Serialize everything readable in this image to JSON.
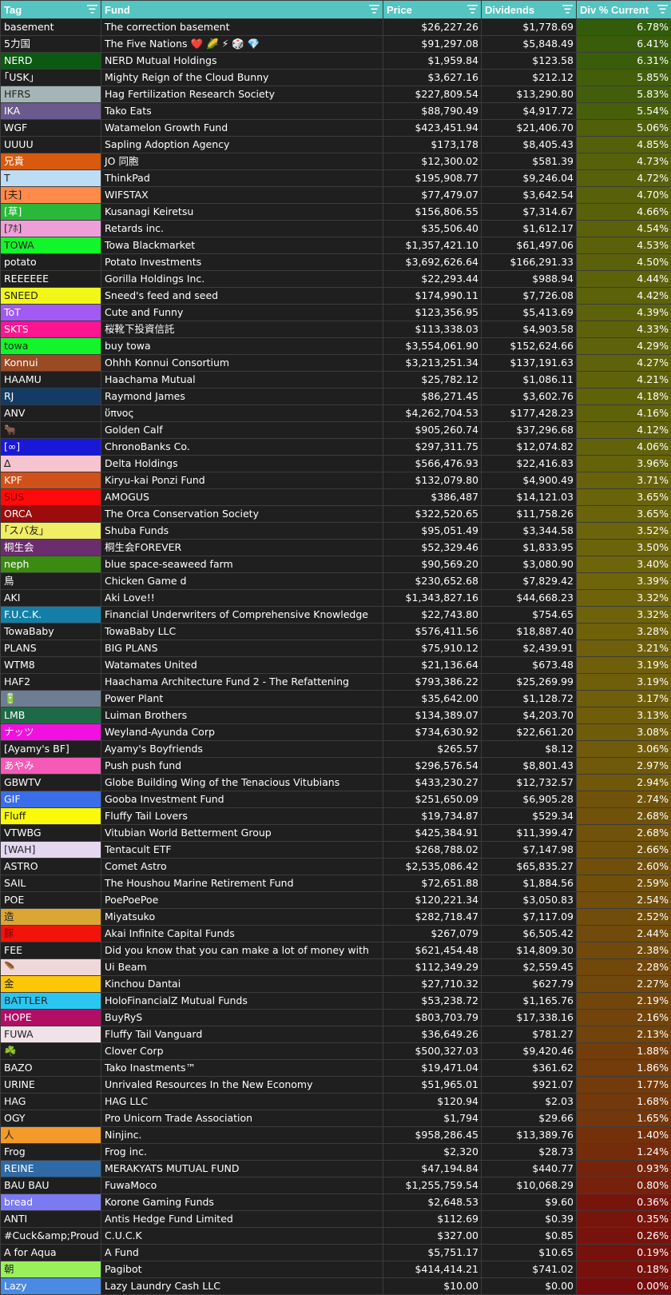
{
  "header": {
    "columns": [
      {
        "key": "tag",
        "label": "Tag"
      },
      {
        "key": "fund",
        "label": "Fund"
      },
      {
        "key": "price",
        "label": "Price"
      },
      {
        "key": "dividends",
        "label": "Dividends"
      },
      {
        "key": "pct",
        "label": "Div % Current"
      }
    ],
    "filter_icon": "filter-list-icon",
    "header_color": "#54c5c1"
  },
  "rows": [
    {
      "tag": "basement",
      "tag_bg": "#1f1f1f",
      "fund": "The correction basement",
      "price": "$26,227.26",
      "dividends": "$1,778.69",
      "pct": "6.78%",
      "pct_value": 6.78
    },
    {
      "tag": "5力国",
      "tag_bg": "#1f1f1f",
      "fund": "The Five Nations ❤️ 🌽 ⚡ 🎲 💎",
      "price": "$91,297.08",
      "dividends": "$5,848.49",
      "pct": "6.41%",
      "pct_value": 6.41
    },
    {
      "tag": "NERD",
      "tag_bg": "#0b5a12",
      "fund": "NERD Mutual Holdings",
      "price": "$1,959.84",
      "dividends": "$123.58",
      "pct": "6.31%",
      "pct_value": 6.31
    },
    {
      "tag": "｢USK｣",
      "tag_bg": "#1f1f1f",
      "fund": "Mighty Reign of the Cloud Bunny",
      "price": "$3,627.16",
      "dividends": "$212.12",
      "pct": "5.85%",
      "pct_value": 5.85
    },
    {
      "tag": "HFRS",
      "tag_bg": "#a4b5b7",
      "fund": "Hag Fertilization Research Society",
      "price": "$227,809.54",
      "dividends": "$13,290.80",
      "pct": "5.83%",
      "pct_value": 5.83
    },
    {
      "tag": "IKA",
      "tag_bg": "#6a5a8e",
      "fund": "Tako Eats",
      "price": "$88,790.49",
      "dividends": "$4,917.72",
      "pct": "5.54%",
      "pct_value": 5.54
    },
    {
      "tag": "WGF",
      "tag_bg": "#1f1f1f",
      "fund": "Watamelon Growth Fund",
      "price": "$423,451.94",
      "dividends": "$21,406.70",
      "pct": "5.06%",
      "pct_value": 5.06
    },
    {
      "tag": "UUUU",
      "tag_bg": "#1f1f1f",
      "fund": "Sapling Adoption Agency",
      "price": "$173,178",
      "dividends": "$8,405.43",
      "pct": "4.85%",
      "pct_value": 4.85
    },
    {
      "tag": "兄貴",
      "tag_bg": "#d85a0e",
      "fund": "JO 同胞",
      "price": "$12,300.02",
      "dividends": "$581.39",
      "pct": "4.73%",
      "pct_value": 4.73
    },
    {
      "tag": "T",
      "tag_bg": "#bedcf4",
      "fund": "ThinkPad",
      "price": "$195,908.77",
      "dividends": "$9,246.04",
      "pct": "4.72%",
      "pct_value": 4.72
    },
    {
      "tag": "[夫]",
      "tag_bg": "#ff8a4a",
      "fund": "WIFSTAX",
      "price": "$77,479.07",
      "dividends": "$3,642.54",
      "pct": "4.70%",
      "pct_value": 4.7
    },
    {
      "tag": "[草]",
      "tag_bg": "#2ab83a",
      "fund": "Kusanagi Keiretsu",
      "price": "$156,806.55",
      "dividends": "$7,314.67",
      "pct": "4.66%",
      "pct_value": 4.66
    },
    {
      "tag": "[ｱﾎ]",
      "tag_bg": "#ef9fd8",
      "fund": "Retards inc.",
      "price": "$35,506.40",
      "dividends": "$1,612.17",
      "pct": "4.54%",
      "pct_value": 4.54
    },
    {
      "tag": "TOWA",
      "tag_bg": "#12f52a",
      "fund": "Towa Blackmarket",
      "price": "$1,357,421.10",
      "dividends": "$61,497.06",
      "pct": "4.53%",
      "pct_value": 4.53
    },
    {
      "tag": "potato",
      "tag_bg": "#1f1f1f",
      "fund": "Potato Investments",
      "price": "$3,692,626.64",
      "dividends": "$166,291.33",
      "pct": "4.50%",
      "pct_value": 4.5
    },
    {
      "tag": "REEEEEE",
      "tag_bg": "#1f1f1f",
      "fund": "Gorilla Holdings Inc.",
      "price": "$22,293.44",
      "dividends": "$988.94",
      "pct": "4.44%",
      "pct_value": 4.44
    },
    {
      "tag": "SNEED",
      "tag_bg": "#f2f71a",
      "fund": "Sneed's feed and seed",
      "price": "$174,990.11",
      "dividends": "$7,726.08",
      "pct": "4.42%",
      "pct_value": 4.42
    },
    {
      "tag": "ToT",
      "tag_bg": "#a35af2",
      "fund": "Cute and Funny",
      "price": "$123,356.95",
      "dividends": "$5,413.69",
      "pct": "4.39%",
      "pct_value": 4.39
    },
    {
      "tag": "SKTS",
      "tag_bg": "#ff158f",
      "fund": "桜靴下投資信託",
      "price": "$113,338.03",
      "dividends": "$4,903.58",
      "pct": "4.33%",
      "pct_value": 4.33
    },
    {
      "tag": "towa",
      "tag_bg": "#12f52a",
      "fund": "buy towa",
      "price": "$3,554,061.90",
      "dividends": "$152,624.66",
      "pct": "4.29%",
      "pct_value": 4.29
    },
    {
      "tag": "Konnui",
      "tag_bg": "#9a4b24",
      "fund": "Ohhh Konnui Consortium",
      "price": "$3,213,251.34",
      "dividends": "$137,191.63",
      "pct": "4.27%",
      "pct_value": 4.27
    },
    {
      "tag": "HAAMU",
      "tag_bg": "#1f1f1f",
      "fund": "Haachama Mutual",
      "price": "$25,782.12",
      "dividends": "$1,086.11",
      "pct": "4.21%",
      "pct_value": 4.21
    },
    {
      "tag": "RJ",
      "tag_bg": "#123c66",
      "fund": "Raymond James",
      "price": "$86,271.45",
      "dividends": "$3,602.76",
      "pct": "4.18%",
      "pct_value": 4.18
    },
    {
      "tag": "ANV",
      "tag_bg": "#1f1f1f",
      "fund": "ὕπνος",
      "price": "$4,262,704.53",
      "dividends": "$177,428.23",
      "pct": "4.16%",
      "pct_value": 4.16
    },
    {
      "tag": "🐂",
      "tag_bg": "#1f1f1f",
      "fund": "Golden Calf",
      "price": "$905,260.74",
      "dividends": "$37,296.68",
      "pct": "4.12%",
      "pct_value": 4.12
    },
    {
      "tag": "[∞]",
      "tag_bg": "#1a18d8",
      "fund": "ChronoBanks Co.",
      "price": "$297,311.75",
      "dividends": "$12,074.82",
      "pct": "4.06%",
      "pct_value": 4.06
    },
    {
      "tag": "∆",
      "tag_bg": "#f5c4cf",
      "fund": "Delta Holdings",
      "price": "$566,476.93",
      "dividends": "$22,416.83",
      "pct": "3.96%",
      "pct_value": 3.96
    },
    {
      "tag": "KPF",
      "tag_bg": "#d2501a",
      "fund": "Kiryu-kai Ponzi Fund",
      "price": "$132,079.80",
      "dividends": "$4,900.49",
      "pct": "3.71%",
      "pct_value": 3.71
    },
    {
      "tag": "SUS",
      "tag_bg": "#ff0a0a",
      "fund": "AMOGUS",
      "price": "$386,487",
      "dividends": "$14,121.03",
      "pct": "3.65%",
      "pct_value": 3.65
    },
    {
      "tag": "ORCA",
      "tag_bg": "#9c0c0c",
      "fund": "The Orca Conservation Society",
      "price": "$322,520.65",
      "dividends": "$11,758.26",
      "pct": "3.65%",
      "pct_value": 3.65
    },
    {
      "tag": "｢スバ友｣",
      "tag_bg": "#f0ee64",
      "fund": "Shuba Funds",
      "price": "$95,051.49",
      "dividends": "$3,344.58",
      "pct": "3.52%",
      "pct_value": 3.52
    },
    {
      "tag": "桐生会",
      "tag_bg": "#6b2d6e",
      "fund": "桐生会FOREVER",
      "price": "$52,329.46",
      "dividends": "$1,833.95",
      "pct": "3.50%",
      "pct_value": 3.5
    },
    {
      "tag": "neph",
      "tag_bg": "#3b8a12",
      "fund": "blue space-seaweed farm",
      "price": "$90,569.20",
      "dividends": "$3,080.90",
      "pct": "3.40%",
      "pct_value": 3.4
    },
    {
      "tag": "鳥",
      "tag_bg": "#1f1f1f",
      "fund": "Chicken Game d",
      "price": "$230,652.68",
      "dividends": "$7,829.42",
      "pct": "3.39%",
      "pct_value": 3.39
    },
    {
      "tag": "AKI",
      "tag_bg": "#1f1f1f",
      "fund": "Aki Love!!",
      "price": "$1,343,827.16",
      "dividends": "$44,668.23",
      "pct": "3.32%",
      "pct_value": 3.32
    },
    {
      "tag": "F.U.C.K.",
      "tag_bg": "#137fa8",
      "fund": "Financial Underwriters of Comprehensive Knowledge",
      "price": "$22,743.80",
      "dividends": "$754.65",
      "pct": "3.32%",
      "pct_value": 3.32
    },
    {
      "tag": "TowaBaby",
      "tag_bg": "#1f1f1f",
      "fund": "TowaBaby LLC",
      "price": "$576,411.56",
      "dividends": "$18,887.40",
      "pct": "3.28%",
      "pct_value": 3.28
    },
    {
      "tag": "PLANS",
      "tag_bg": "#1f1f1f",
      "fund": "BIG PLANS",
      "price": "$75,910.12",
      "dividends": "$2,439.91",
      "pct": "3.21%",
      "pct_value": 3.21
    },
    {
      "tag": "WTM8",
      "tag_bg": "#1f1f1f",
      "fund": "Watamates United",
      "price": "$21,136.64",
      "dividends": "$673.48",
      "pct": "3.19%",
      "pct_value": 3.19
    },
    {
      "tag": "HAF2",
      "tag_bg": "#1f1f1f",
      "fund": "Haachama Architecture Fund 2 - The Refattening",
      "price": "$793,386.22",
      "dividends": "$25,269.99",
      "pct": "3.19%",
      "pct_value": 3.19
    },
    {
      "tag": "🔋",
      "tag_bg": "#6e7e92",
      "fund": "Power Plant",
      "price": "$35,642.00",
      "dividends": "$1,128.72",
      "pct": "3.17%",
      "pct_value": 3.17
    },
    {
      "tag": "LMB",
      "tag_bg": "#1f6a46",
      "fund": "Luiman Brothers",
      "price": "$134,389.07",
      "dividends": "$4,203.70",
      "pct": "3.13%",
      "pct_value": 3.13
    },
    {
      "tag": "ナッツ",
      "tag_bg": "#f010e0",
      "fund": "Weyland-Ayunda Corp",
      "price": "$734,630.92",
      "dividends": "$22,661.20",
      "pct": "3.08%",
      "pct_value": 3.08
    },
    {
      "tag": "[Ayamy's BF]",
      "tag_bg": "#1f1f1f",
      "fund": "Ayamy's Boyfriends",
      "price": "$265.57",
      "dividends": "$8.12",
      "pct": "3.06%",
      "pct_value": 3.06
    },
    {
      "tag": "あやみ",
      "tag_bg": "#f55ab6",
      "fund": "Push push fund",
      "price": "$296,576.54",
      "dividends": "$8,801.43",
      "pct": "2.97%",
      "pct_value": 2.97
    },
    {
      "tag": "GBWTV",
      "tag_bg": "#1f1f1f",
      "fund": "Globe Building Wing of the Tenacious Vitubians",
      "price": "$433,230.27",
      "dividends": "$12,732.57",
      "pct": "2.94%",
      "pct_value": 2.94
    },
    {
      "tag": "GIF",
      "tag_bg": "#3a6de8",
      "fund": "Gooba Investment Fund",
      "price": "$251,650.09",
      "dividends": "$6,905.28",
      "pct": "2.74%",
      "pct_value": 2.74
    },
    {
      "tag": "Fluff",
      "tag_bg": "#fafa0a",
      "fund": "Fluffy Tail Lovers",
      "price": "$19,734.87",
      "dividends": "$529.34",
      "pct": "2.68%",
      "pct_value": 2.68
    },
    {
      "tag": "VTWBG",
      "tag_bg": "#1f1f1f",
      "fund": "Vitubian World Betterment Group",
      "price": "$425,384.91",
      "dividends": "$11,399.47",
      "pct": "2.68%",
      "pct_value": 2.68
    },
    {
      "tag": "[WAH]",
      "tag_bg": "#e4d8f0",
      "fund": "Tentacult ETF",
      "price": "$268,788.02",
      "dividends": "$7,147.98",
      "pct": "2.66%",
      "pct_value": 2.66
    },
    {
      "tag": "ASTRO",
      "tag_bg": "#1f1f1f",
      "fund": "Comet Astro",
      "price": "$2,535,086.42",
      "dividends": "$65,835.27",
      "pct": "2.60%",
      "pct_value": 2.6
    },
    {
      "tag": "SAIL",
      "tag_bg": "#1f1f1f",
      "fund": "The Houshou Marine Retirement Fund",
      "price": "$72,651.88",
      "dividends": "$1,884.56",
      "pct": "2.59%",
      "pct_value": 2.59
    },
    {
      "tag": "POE",
      "tag_bg": "#1f1f1f",
      "fund": "PoePoePoe",
      "price": "$120,221.34",
      "dividends": "$3,050.83",
      "pct": "2.54%",
      "pct_value": 2.54
    },
    {
      "tag": "造",
      "tag_bg": "#dca633",
      "fund": "Miyatsuko",
      "price": "$282,718.47",
      "dividends": "$7,117.09",
      "pct": "2.52%",
      "pct_value": 2.52
    },
    {
      "tag": "豚",
      "tag_bg": "#f0140a",
      "fund": "Akai Infinite Capital Funds",
      "price": "$267,079",
      "dividends": "$6,505.42",
      "pct": "2.44%",
      "pct_value": 2.44
    },
    {
      "tag": "FEE",
      "tag_bg": "#1f1f1f",
      "fund": "Did you know that you can make a lot of money with",
      "price": "$621,454.48",
      "dividends": "$14,809.30",
      "pct": "2.38%",
      "pct_value": 2.38
    },
    {
      "tag": "🪶",
      "tag_bg": "#f0d8da",
      "fund": "Ui Beam",
      "price": "$112,349.29",
      "dividends": "$2,559.45",
      "pct": "2.28%",
      "pct_value": 2.28
    },
    {
      "tag": "金",
      "tag_bg": "#fcc60a",
      "fund": "Kinchou Dantai",
      "price": "$27,710.32",
      "dividends": "$627.79",
      "pct": "2.27%",
      "pct_value": 2.27
    },
    {
      "tag": "BATTLER",
      "tag_bg": "#2ac6f2",
      "fund": "HoloFinancialZ Mutual Funds",
      "price": "$53,238.72",
      "dividends": "$1,165.76",
      "pct": "2.19%",
      "pct_value": 2.19
    },
    {
      "tag": "HOPE",
      "tag_bg": "#b20e66",
      "fund": "BuyRyS",
      "price": "$803,703.79",
      "dividends": "$17,338.16",
      "pct": "2.16%",
      "pct_value": 2.16
    },
    {
      "tag": "FUWA",
      "tag_bg": "#f0e2e6",
      "fund": "Fluffy Tail Vanguard",
      "price": "$36,649.26",
      "dividends": "$781.27",
      "pct": "2.13%",
      "pct_value": 2.13
    },
    {
      "tag": "☘️",
      "tag_bg": "#1f1f1f",
      "fund": "Clover Corp",
      "price": "$500,327.03",
      "dividends": "$9,420.46",
      "pct": "1.88%",
      "pct_value": 1.88
    },
    {
      "tag": "BAZO",
      "tag_bg": "#1f1f1f",
      "fund": "Tako Inastments™",
      "price": "$19,471.04",
      "dividends": "$361.62",
      "pct": "1.86%",
      "pct_value": 1.86
    },
    {
      "tag": "URINE",
      "tag_bg": "#1f1f1f",
      "fund": "Unrivaled Resources In the New Economy",
      "price": "$51,965.01",
      "dividends": "$921.07",
      "pct": "1.77%",
      "pct_value": 1.77
    },
    {
      "tag": "HAG",
      "tag_bg": "#1f1f1f",
      "fund": "HAG LLC",
      "price": "$120.94",
      "dividends": "$2.03",
      "pct": "1.68%",
      "pct_value": 1.68
    },
    {
      "tag": "OGY",
      "tag_bg": "#1f1f1f",
      "fund": "Pro Unicorn Trade Association",
      "price": "$1,794",
      "dividends": "$29.66",
      "pct": "1.65%",
      "pct_value": 1.65
    },
    {
      "tag": "人",
      "tag_bg": "#f29a2a",
      "fund": "Ninjinc.",
      "price": "$958,286.45",
      "dividends": "$13,389.76",
      "pct": "1.40%",
      "pct_value": 1.4
    },
    {
      "tag": "Frog",
      "tag_bg": "#1f1f1f",
      "fund": "Frog inc.",
      "price": "$2,320",
      "dividends": "$28.73",
      "pct": "1.24%",
      "pct_value": 1.24
    },
    {
      "tag": "REINE",
      "tag_bg": "#2f6aa6",
      "fund": "MERAKYATS MUTUAL FUND",
      "price": "$47,194.84",
      "dividends": "$440.77",
      "pct": "0.93%",
      "pct_value": 0.93
    },
    {
      "tag": "BAU BAU",
      "tag_bg": "#1f1f1f",
      "fund": "FuwaMoco",
      "price": "$1,255,759.54",
      "dividends": "$10,068.29",
      "pct": "0.80%",
      "pct_value": 0.8
    },
    {
      "tag": "bread",
      "tag_bg": "#7a7af2",
      "fund": "Korone Gaming Funds",
      "price": "$2,648.53",
      "dividends": "$9.60",
      "pct": "0.36%",
      "pct_value": 0.36
    },
    {
      "tag": "ANTI",
      "tag_bg": "#1f1f1f",
      "fund": "Antis Hedge Fund Limited",
      "price": "$112.69",
      "dividends": "$0.39",
      "pct": "0.35%",
      "pct_value": 0.35
    },
    {
      "tag": "#Cuck&amp;Proud",
      "tag_bg": "#1f1f1f",
      "fund": "C.U.C.K",
      "price": "$327.00",
      "dividends": "$0.85",
      "pct": "0.26%",
      "pct_value": 0.26
    },
    {
      "tag": "A for Aqua",
      "tag_bg": "#1f1f1f",
      "fund": "A Fund",
      "price": "$5,751.17",
      "dividends": "$10.65",
      "pct": "0.19%",
      "pct_value": 0.19
    },
    {
      "tag": "朝",
      "tag_bg": "#9af05a",
      "fund": "Pagibot",
      "price": "$414,414.21",
      "dividends": "$741.02",
      "pct": "0.18%",
      "pct_value": 0.18
    },
    {
      "tag": "Lazy",
      "tag_bg": "#4a8ae2",
      "fund": "Lazy Laundry Cash LLC",
      "price": "$10.00",
      "dividends": "$0.00",
      "pct": "0.00%",
      "pct_value": 0.0
    }
  ]
}
